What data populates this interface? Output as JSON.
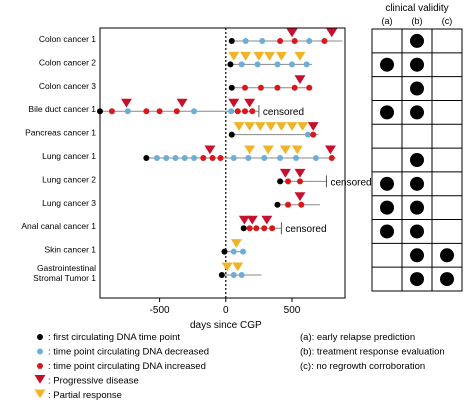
{
  "chart_data": {
    "type": "timeline-scatter",
    "xlabel": "days since CGP",
    "xlim": [
      -950,
      900
    ],
    "xticks": [
      -500,
      0,
      500
    ],
    "rows": [
      {
        "label": "Colon cancer 1",
        "line": [
          30,
          880
        ],
        "events": [
          {
            "x": 45,
            "kind": "first"
          },
          {
            "x": 150,
            "kind": "decreased"
          },
          {
            "x": 275,
            "kind": "decreased"
          },
          {
            "x": 410,
            "kind": "increased"
          },
          {
            "x": 520,
            "kind": "increased"
          },
          {
            "x": 630,
            "kind": "decreased"
          },
          {
            "x": 745,
            "kind": "increased"
          }
        ],
        "pd": [
          500,
          800
        ],
        "pr": []
      },
      {
        "label": "Colon cancer 2",
        "line": [
          30,
          650
        ],
        "events": [
          {
            "x": 35,
            "kind": "first"
          },
          {
            "x": 120,
            "kind": "decreased"
          },
          {
            "x": 240,
            "kind": "decreased"
          },
          {
            "x": 390,
            "kind": "decreased"
          },
          {
            "x": 500,
            "kind": "decreased"
          },
          {
            "x": 610,
            "kind": "decreased"
          }
        ],
        "pd": [],
        "pr": [
          60,
          150,
          250,
          330,
          420,
          560
        ]
      },
      {
        "label": "Colon cancer 3",
        "line": [
          30,
          640
        ],
        "events": [
          {
            "x": 45,
            "kind": "first"
          },
          {
            "x": 145,
            "kind": "increased"
          },
          {
            "x": 265,
            "kind": "increased"
          },
          {
            "x": 390,
            "kind": "increased"
          },
          {
            "x": 520,
            "kind": "increased"
          },
          {
            "x": 630,
            "kind": "increased"
          }
        ],
        "pd": [
          560
        ],
        "pr": []
      },
      {
        "label": "Bile duct cancer 1",
        "line": [
          -960,
          250
        ],
        "censored": true,
        "events": [
          {
            "x": -950,
            "kind": "first"
          },
          {
            "x": -860,
            "kind": "increased"
          },
          {
            "x": -740,
            "kind": "decreased"
          },
          {
            "x": -600,
            "kind": "increased"
          },
          {
            "x": -500,
            "kind": "increased"
          },
          {
            "x": -370,
            "kind": "increased"
          },
          {
            "x": -240,
            "kind": "decreased"
          },
          {
            "x": 40,
            "kind": "decreased"
          },
          {
            "x": 90,
            "kind": "increased"
          },
          {
            "x": 145,
            "kind": "increased"
          },
          {
            "x": 200,
            "kind": "increased"
          }
        ],
        "pd": [
          -750,
          -330,
          60,
          180
        ],
        "pr": []
      },
      {
        "label": "Pancreas cancer 1",
        "line": [
          30,
          700
        ],
        "events": [
          {
            "x": 45,
            "kind": "first"
          },
          {
            "x": 620,
            "kind": "decreased"
          },
          {
            "x": 660,
            "kind": "increased"
          }
        ],
        "pd": [
          660
        ],
        "pr": [
          100,
          180,
          260,
          340,
          420,
          500,
          580
        ]
      },
      {
        "label": "Lung cancer 1",
        "line": [
          -620,
          830
        ],
        "events": [
          {
            "x": -600,
            "kind": "first"
          },
          {
            "x": -520,
            "kind": "decreased"
          },
          {
            "x": -450,
            "kind": "decreased"
          },
          {
            "x": -380,
            "kind": "decreased"
          },
          {
            "x": -310,
            "kind": "decreased"
          },
          {
            "x": -240,
            "kind": "decreased"
          },
          {
            "x": -170,
            "kind": "increased"
          },
          {
            "x": -100,
            "kind": "increased"
          },
          {
            "x": -40,
            "kind": "increased"
          },
          {
            "x": 60,
            "kind": "decreased"
          },
          {
            "x": 170,
            "kind": "decreased"
          },
          {
            "x": 290,
            "kind": "decreased"
          },
          {
            "x": 410,
            "kind": "decreased"
          },
          {
            "x": 530,
            "kind": "decreased"
          },
          {
            "x": 680,
            "kind": "decreased"
          },
          {
            "x": 800,
            "kind": "increased"
          }
        ],
        "pd": [
          -120,
          790
        ],
        "pr": [
          180,
          320,
          450,
          540
        ]
      },
      {
        "label": "Lung cancer 2",
        "line": [
          390,
          760
        ],
        "censored": true,
        "events": [
          {
            "x": 410,
            "kind": "first"
          },
          {
            "x": 470,
            "kind": "increased"
          },
          {
            "x": 560,
            "kind": "increased"
          }
        ],
        "pd": [
          450,
          560
        ],
        "pr": []
      },
      {
        "label": "Lung cancer 3",
        "line": [
          380,
          710
        ],
        "events": [
          {
            "x": 390,
            "kind": "first"
          },
          {
            "x": 470,
            "kind": "increased"
          },
          {
            "x": 570,
            "kind": "increased"
          }
        ],
        "pd": [
          560
        ],
        "pr": []
      },
      {
        "label": "Anal canal cancer 1",
        "line": [
          120,
          420
        ],
        "censored": true,
        "events": [
          {
            "x": 135,
            "kind": "first"
          },
          {
            "x": 180,
            "kind": "increased"
          },
          {
            "x": 230,
            "kind": "increased"
          },
          {
            "x": 290,
            "kind": "increased"
          },
          {
            "x": 350,
            "kind": "increased"
          }
        ],
        "pd": [
          140,
          200,
          310
        ],
        "pr": []
      },
      {
        "label": "Skin cancer 1",
        "line": [
          -20,
          140
        ],
        "events": [
          {
            "x": -10,
            "kind": "first"
          },
          {
            "x": 60,
            "kind": "decreased"
          },
          {
            "x": 130,
            "kind": "decreased"
          }
        ],
        "pd": [],
        "pr": [
          80
        ]
      },
      {
        "label": "Gastrointestinal\nStromal Tumor 1",
        "line": [
          -40,
          270
        ],
        "events": [
          {
            "x": -30,
            "kind": "first"
          },
          {
            "x": 60,
            "kind": "decreased"
          },
          {
            "x": 120,
            "kind": "decreased"
          }
        ],
        "pd": [],
        "pr": [
          10,
          90
        ]
      }
    ],
    "censored_label": "censored",
    "validity": {
      "title": "clinical validity",
      "columns": [
        "(a)",
        "(b)",
        "(c)"
      ],
      "marks": [
        [
          false,
          true,
          false
        ],
        [
          true,
          true,
          false
        ],
        [
          false,
          true,
          false
        ],
        [
          true,
          true,
          false
        ],
        [
          false,
          false,
          false
        ],
        [
          false,
          true,
          false
        ],
        [
          true,
          true,
          false
        ],
        [
          true,
          true,
          false
        ],
        [
          true,
          true,
          false
        ],
        [
          false,
          true,
          true
        ],
        [
          false,
          true,
          true
        ]
      ]
    },
    "legend": [
      {
        "kind": "first",
        "label": ": first circulating DNA time point"
      },
      {
        "kind": "decreased",
        "label": ": time point circulating DNA decreased"
      },
      {
        "kind": "increased",
        "label": ": time point circulating DNA increased"
      },
      {
        "kind": "pd",
        "label": ": Progressive disease"
      },
      {
        "kind": "pr",
        "label": ": Partial response"
      }
    ],
    "notes": [
      "(a): early relapse prediction",
      "(b): treatment response evaluation",
      "(c): no regrowth corroboration"
    ],
    "colors": {
      "first": "#000000",
      "decreased": "#6baed6",
      "increased": "#d7191c",
      "pd": "#c8102e",
      "pr": "#f0b429",
      "line": "#888888"
    }
  }
}
